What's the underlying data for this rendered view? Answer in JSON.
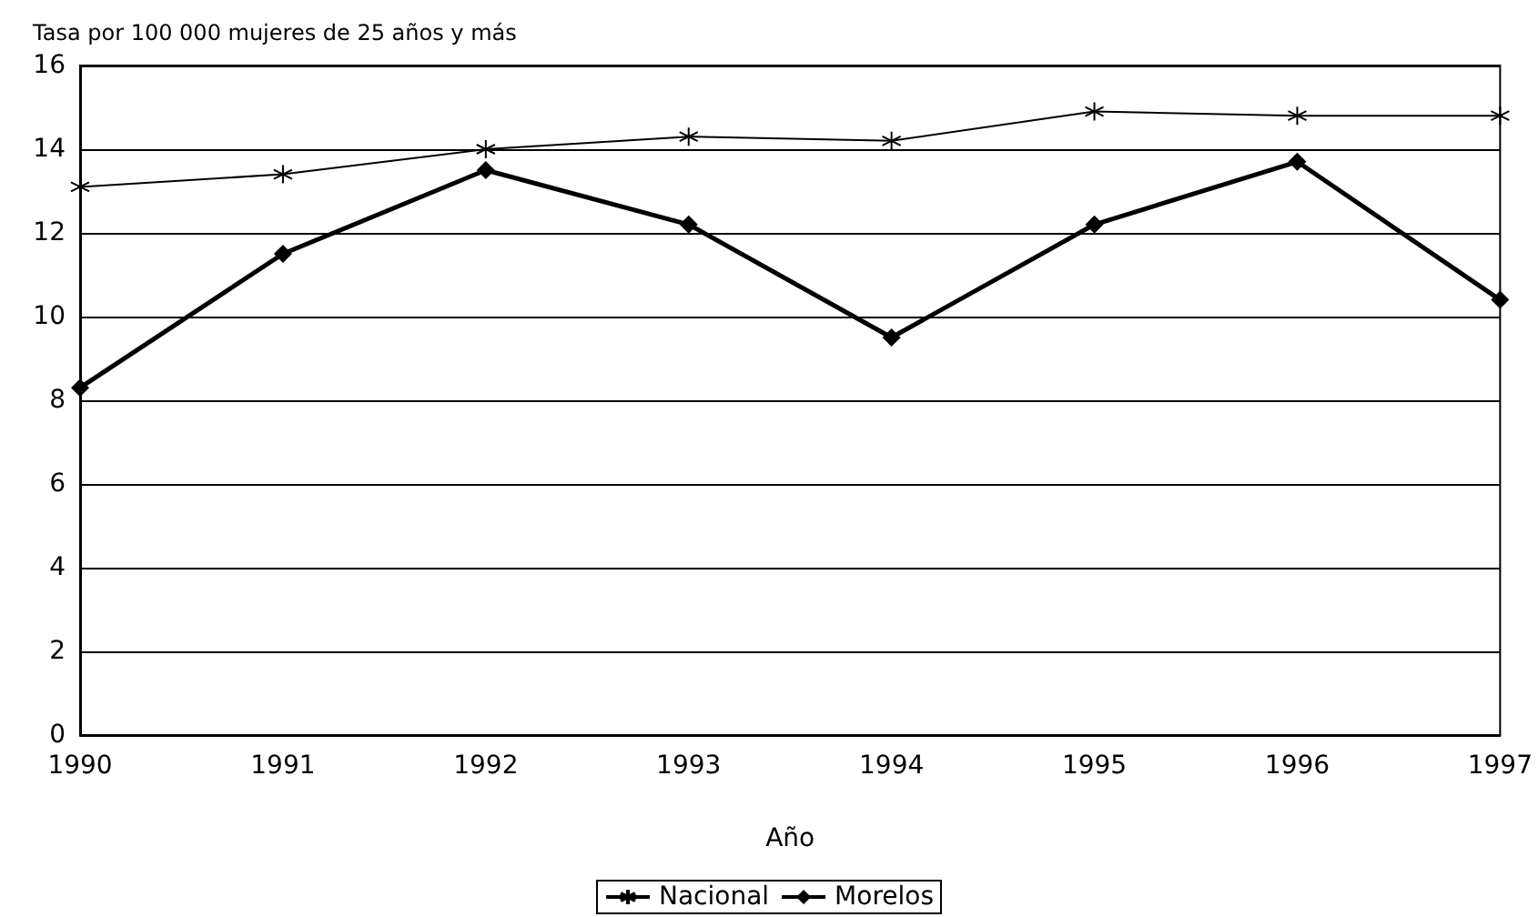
{
  "chart_data": {
    "type": "line",
    "ylabel": "Tasa por 100 000 mujeres de 25 años y más",
    "xlabel": "Año",
    "x": [
      1990,
      1991,
      1992,
      1993,
      1994,
      1995,
      1996,
      1997
    ],
    "series": [
      {
        "name": "Nacional",
        "color": "#000000",
        "marker": "cross",
        "values": [
          13.1,
          13.4,
          14.0,
          14.3,
          14.2,
          14.9,
          14.8,
          14.8
        ]
      },
      {
        "name": "Morelos",
        "color": "#000000",
        "marker": "diamond",
        "values": [
          8.3,
          11.5,
          13.5,
          12.2,
          9.5,
          12.2,
          13.7,
          10.4
        ]
      }
    ],
    "xlim": [
      1990,
      1997
    ],
    "xticks": [
      1990,
      1991,
      1992,
      1993,
      1994,
      1995,
      1996,
      1997
    ],
    "ylim": [
      0,
      16
    ],
    "yticks": [
      0,
      2,
      4,
      6,
      8,
      10,
      12,
      14,
      16
    ],
    "grid": "y",
    "legend": "bottom"
  }
}
